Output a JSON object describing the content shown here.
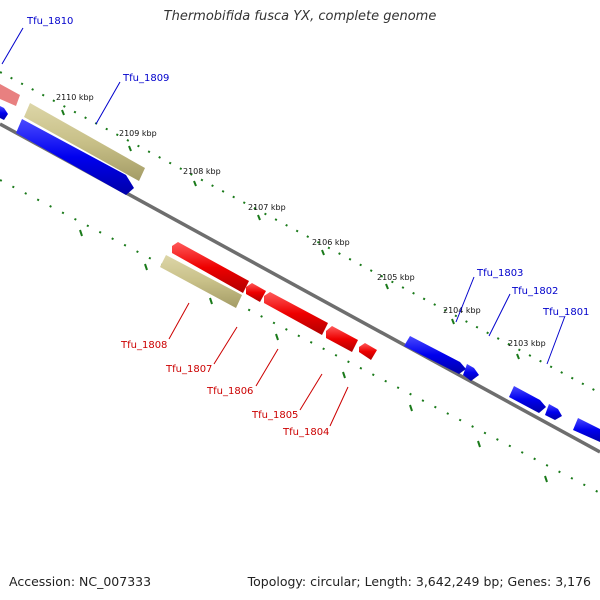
{
  "title": "Thermobifida fusca YX, complete genome",
  "footer": {
    "accession": "Accession: NC_007333",
    "summary": "Topology: circular; Length: 3,642,249 bp; Genes: 3,176"
  },
  "colors": {
    "forward_cds": "#0000ee",
    "reverse_cds": "#ee0000",
    "highlight": "#c8c088",
    "partial": "#e88080",
    "tick": "#1a7a1a",
    "backbone": "#777777"
  },
  "ticks": [
    "2110 kbp",
    "2109 kbp",
    "2108 kbp",
    "2107 kbp",
    "2106 kbp",
    "2105 kbp",
    "2104 kbp",
    "2103 kbp"
  ],
  "forward_labels": [
    "Tfu_1810",
    "Tfu_1809",
    "Tfu_1803",
    "Tfu_1802",
    "Tfu_1801"
  ],
  "reverse_labels": [
    "Tfu_1808",
    "Tfu_1807",
    "Tfu_1806",
    "Tfu_1805",
    "Tfu_1804"
  ]
}
